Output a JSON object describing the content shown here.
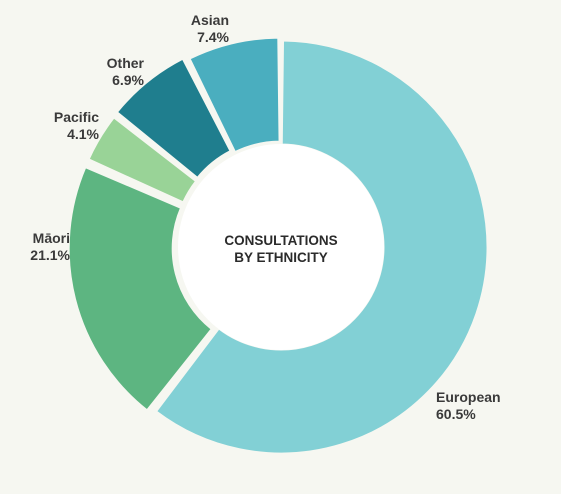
{
  "chart_data": {
    "type": "pie",
    "donut": true,
    "center_title_lines": [
      "CONSULTATIONS",
      "BY ETHNICITY"
    ],
    "slices": [
      {
        "name": "European",
        "value": 60.5,
        "label": "60.5%",
        "color": "#82d0d5"
      },
      {
        "name": "Māori",
        "value": 21.1,
        "label": "21.1%",
        "color": "#5db581"
      },
      {
        "name": "Pacific",
        "value": 4.1,
        "label": "4.1%",
        "color": "#99d397"
      },
      {
        "name": "Other",
        "value": 6.9,
        "label": "6.9%",
        "color": "#1f7e8e"
      },
      {
        "name": "Asian",
        "value": 7.4,
        "label": "7.4%",
        "color": "#4aaebf"
      }
    ],
    "legend": "none",
    "background_color": "#f6f7f1"
  }
}
